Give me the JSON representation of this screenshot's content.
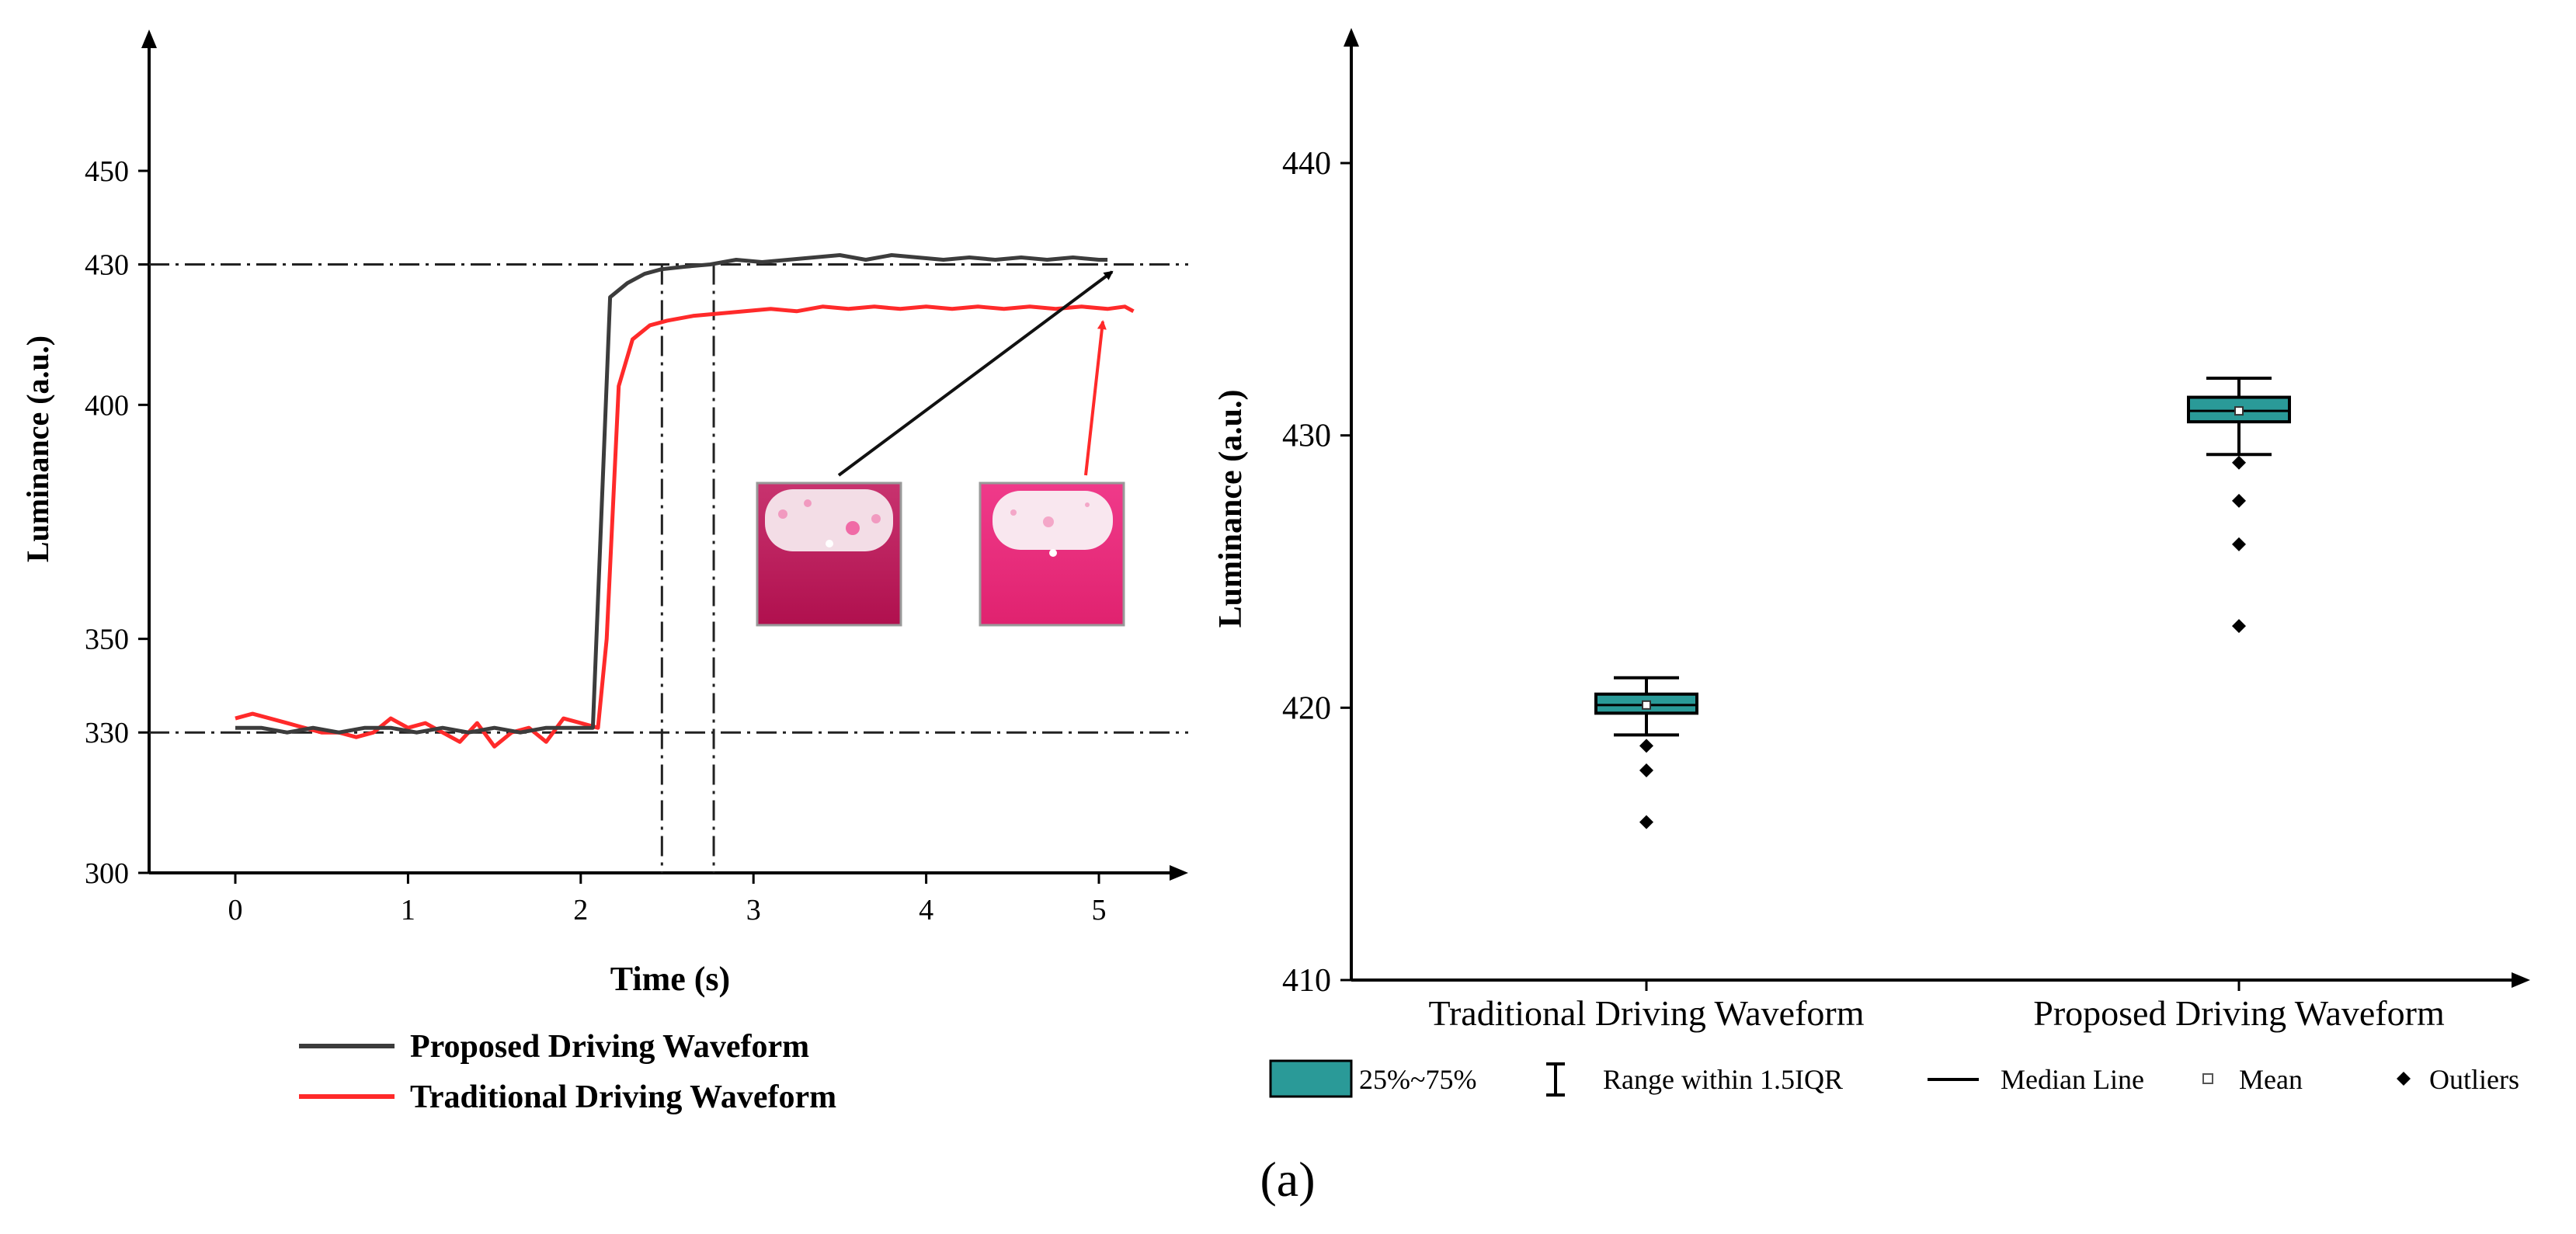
{
  "caption": "(a)",
  "chart_data": [
    {
      "type": "line",
      "xlabel": "Time (s)",
      "ylabel": "Luminance (a.u.)",
      "xlim": [
        -0.5,
        5.5
      ],
      "ylim": [
        300,
        480
      ],
      "xticks": [
        "0",
        "1",
        "2",
        "3",
        "4",
        "5"
      ],
      "yticks": [
        "300",
        "330",
        "350",
        "400",
        "430",
        "450"
      ],
      "reference_lines": {
        "horizontal": [
          330,
          430
        ],
        "vertical": [
          2.47,
          2.77
        ]
      },
      "series": [
        {
          "name": "Proposed Driving Waveform",
          "color": "#3c3c3c",
          "x": [
            0,
            0.15,
            0.3,
            0.45,
            0.6,
            0.75,
            0.9,
            1.05,
            1.2,
            1.35,
            1.5,
            1.65,
            1.8,
            1.95,
            2.07,
            2.17,
            2.27,
            2.37,
            2.47,
            2.6,
            2.75,
            2.9,
            3.05,
            3.2,
            3.35,
            3.5,
            3.65,
            3.8,
            3.95,
            4.1,
            4.25,
            4.4,
            4.55,
            4.7,
            4.85,
            5.0,
            5.05
          ],
          "values": [
            331,
            331,
            330,
            331,
            330,
            331,
            331,
            330,
            331,
            330,
            331,
            330,
            331,
            331,
            331,
            423,
            426,
            428,
            429,
            429.5,
            430,
            431,
            430.5,
            431,
            431.5,
            432,
            431,
            432,
            431.5,
            431,
            431.5,
            431,
            431.5,
            431,
            431.5,
            431,
            431
          ]
        },
        {
          "name": "Traditional Driving Waveform",
          "color": "#ff2a2a",
          "x": [
            0,
            0.1,
            0.2,
            0.3,
            0.4,
            0.5,
            0.6,
            0.7,
            0.8,
            0.9,
            1.0,
            1.1,
            1.2,
            1.3,
            1.4,
            1.5,
            1.6,
            1.7,
            1.8,
            1.9,
            2.0,
            2.1,
            2.15,
            2.22,
            2.3,
            2.4,
            2.5,
            2.65,
            2.8,
            2.95,
            3.1,
            3.25,
            3.4,
            3.55,
            3.7,
            3.85,
            4.0,
            4.15,
            4.3,
            4.45,
            4.6,
            4.75,
            4.9,
            5.05,
            5.15,
            5.2
          ],
          "values": [
            333,
            334,
            333,
            332,
            331,
            330,
            330,
            329,
            330,
            333,
            331,
            332,
            330,
            328,
            332,
            327,
            330,
            331,
            328,
            333,
            332,
            331,
            350,
            404,
            414,
            417,
            418,
            419,
            419.5,
            420,
            420.5,
            420,
            421,
            420.5,
            421,
            420.5,
            421,
            420.5,
            421,
            420.5,
            421,
            420.5,
            421,
            420.5,
            421,
            420
          ]
        }
      ],
      "legend": [
        "Proposed Driving Waveform",
        "Traditional Driving Waveform"
      ]
    },
    {
      "type": "box",
      "ylabel": "Luminance (a.u.)",
      "ylim": [
        410,
        446
      ],
      "yticks": [
        "410",
        "420",
        "430",
        "440"
      ],
      "categories": [
        "Traditional Driving Waveform",
        "Proposed Driving Waveform"
      ],
      "boxes": [
        {
          "name": "Traditional Driving Waveform",
          "whisker_low": 419.0,
          "q1": 419.8,
          "median": 420.1,
          "mean": 420.1,
          "q3": 420.5,
          "whisker_high": 421.1,
          "outliers": [
            418.6,
            417.7,
            415.8
          ]
        },
        {
          "name": "Proposed Driving Waveform",
          "whisker_low": 429.3,
          "q1": 430.5,
          "median": 430.9,
          "mean": 430.9,
          "q3": 431.4,
          "whisker_high": 432.1,
          "outliers": [
            429.0,
            427.6,
            426.0,
            423.0
          ]
        }
      ],
      "box_color": "#2a9a98",
      "legend": [
        "25%~75%",
        "Range within 1.5IQR",
        "Median Line",
        "Mean",
        "Outliers"
      ]
    }
  ]
}
